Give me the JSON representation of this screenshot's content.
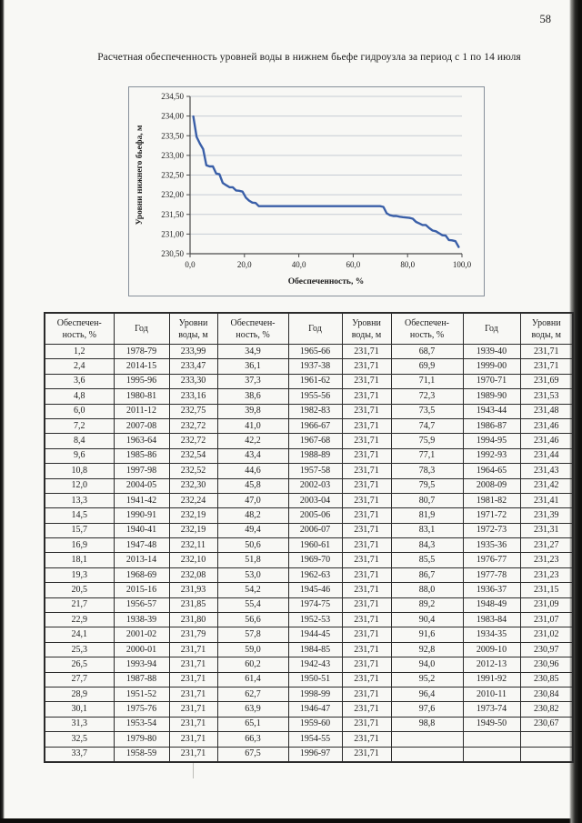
{
  "page": {
    "number": "58",
    "title": "Расчетная обеспеченность уровней воды в нижнем бьефе гидроузла за период с 1 по 14 июля"
  },
  "chart_data": {
    "type": "line",
    "title": "",
    "xlabel": "Обеспеченность, %",
    "ylabel": "Уровни нижнего бьефа, м",
    "xlim": [
      0,
      100
    ],
    "ylim": [
      230.5,
      234.5
    ],
    "xticks": [
      0,
      20,
      40,
      60,
      80,
      100
    ],
    "xtick_labels": [
      "0,0",
      "20,0",
      "40,0",
      "60,0",
      "80,0",
      "100,0"
    ],
    "yticks": [
      230.5,
      231.0,
      231.5,
      232.0,
      232.5,
      233.0,
      233.5,
      234.0,
      234.5
    ],
    "ytick_labels": [
      "230,50",
      "231,00",
      "231,50",
      "232,00",
      "232,50",
      "233,00",
      "233,50",
      "234,00",
      "234,50"
    ],
    "grid": true,
    "legend": false,
    "line_color": "#3a5fa8",
    "series": [
      {
        "name": "Уровни нижнего бьефа",
        "points": [
          [
            1.2,
            233.99
          ],
          [
            2.4,
            233.47
          ],
          [
            3.6,
            233.3
          ],
          [
            4.8,
            233.16
          ],
          [
            6.0,
            232.75
          ],
          [
            7.2,
            232.72
          ],
          [
            8.4,
            232.72
          ],
          [
            9.6,
            232.54
          ],
          [
            10.8,
            232.52
          ],
          [
            12.0,
            232.3
          ],
          [
            13.3,
            232.24
          ],
          [
            14.5,
            232.19
          ],
          [
            15.7,
            232.19
          ],
          [
            16.9,
            232.11
          ],
          [
            18.1,
            232.1
          ],
          [
            19.3,
            232.08
          ],
          [
            20.5,
            231.93
          ],
          [
            21.7,
            231.85
          ],
          [
            22.9,
            231.8
          ],
          [
            24.1,
            231.79
          ],
          [
            25.3,
            231.71
          ],
          [
            26.5,
            231.71
          ],
          [
            27.7,
            231.71
          ],
          [
            28.9,
            231.71
          ],
          [
            30.1,
            231.71
          ],
          [
            31.3,
            231.71
          ],
          [
            32.5,
            231.71
          ],
          [
            33.7,
            231.71
          ],
          [
            34.9,
            231.71
          ],
          [
            36.1,
            231.71
          ],
          [
            37.3,
            231.71
          ],
          [
            38.6,
            231.71
          ],
          [
            39.8,
            231.71
          ],
          [
            41.0,
            231.71
          ],
          [
            42.2,
            231.71
          ],
          [
            43.4,
            231.71
          ],
          [
            44.6,
            231.71
          ],
          [
            45.8,
            231.71
          ],
          [
            47.0,
            231.71
          ],
          [
            48.2,
            231.71
          ],
          [
            49.4,
            231.71
          ],
          [
            50.6,
            231.71
          ],
          [
            51.8,
            231.71
          ],
          [
            53.0,
            231.71
          ],
          [
            54.2,
            231.71
          ],
          [
            55.4,
            231.71
          ],
          [
            56.6,
            231.71
          ],
          [
            57.8,
            231.71
          ],
          [
            59.0,
            231.71
          ],
          [
            60.2,
            231.71
          ],
          [
            61.4,
            231.71
          ],
          [
            62.7,
            231.71
          ],
          [
            63.9,
            231.71
          ],
          [
            65.1,
            231.71
          ],
          [
            66.3,
            231.71
          ],
          [
            67.5,
            231.71
          ],
          [
            68.7,
            231.71
          ],
          [
            69.9,
            231.71
          ],
          [
            71.1,
            231.69
          ],
          [
            72.3,
            231.53
          ],
          [
            73.5,
            231.48
          ],
          [
            74.7,
            231.46
          ],
          [
            75.9,
            231.46
          ],
          [
            77.1,
            231.44
          ],
          [
            78.3,
            231.43
          ],
          [
            79.5,
            231.42
          ],
          [
            80.7,
            231.41
          ],
          [
            81.9,
            231.39
          ],
          [
            83.1,
            231.31
          ],
          [
            84.3,
            231.27
          ],
          [
            85.5,
            231.23
          ],
          [
            86.7,
            231.23
          ],
          [
            88.0,
            231.15
          ],
          [
            89.2,
            231.09
          ],
          [
            90.4,
            231.07
          ],
          [
            91.6,
            231.02
          ],
          [
            92.8,
            230.97
          ],
          [
            94.0,
            230.96
          ],
          [
            95.2,
            230.85
          ],
          [
            96.4,
            230.84
          ],
          [
            97.6,
            230.82
          ],
          [
            98.8,
            230.67
          ]
        ]
      }
    ]
  },
  "table": {
    "headers": [
      "Обеспечен-\nность, %",
      "Год",
      "Уровни\nводы, м",
      "Обеспечен-\nность, %",
      "Год",
      "Уровни\nводы, м",
      "Обеспечен-\nность, %",
      "Год",
      "Уровни\nводы, м"
    ],
    "rows": [
      [
        "1,2",
        "1978-79",
        "233,99",
        "34,9",
        "1965-66",
        "231,71",
        "68,7",
        "1939-40",
        "231,71"
      ],
      [
        "2,4",
        "2014-15",
        "233,47",
        "36,1",
        "1937-38",
        "231,71",
        "69,9",
        "1999-00",
        "231,71"
      ],
      [
        "3,6",
        "1995-96",
        "233,30",
        "37,3",
        "1961-62",
        "231,71",
        "71,1",
        "1970-71",
        "231,69"
      ],
      [
        "4,8",
        "1980-81",
        "233,16",
        "38,6",
        "1955-56",
        "231,71",
        "72,3",
        "1989-90",
        "231,53"
      ],
      [
        "6,0",
        "2011-12",
        "232,75",
        "39,8",
        "1982-83",
        "231,71",
        "73,5",
        "1943-44",
        "231,48"
      ],
      [
        "7,2",
        "2007-08",
        "232,72",
        "41,0",
        "1966-67",
        "231,71",
        "74,7",
        "1986-87",
        "231,46"
      ],
      [
        "8,4",
        "1963-64",
        "232,72",
        "42,2",
        "1967-68",
        "231,71",
        "75,9",
        "1994-95",
        "231,46"
      ],
      [
        "9,6",
        "1985-86",
        "232,54",
        "43,4",
        "1988-89",
        "231,71",
        "77,1",
        "1992-93",
        "231,44"
      ],
      [
        "10,8",
        "1997-98",
        "232,52",
        "44,6",
        "1957-58",
        "231,71",
        "78,3",
        "1964-65",
        "231,43"
      ],
      [
        "12,0",
        "2004-05",
        "232,30",
        "45,8",
        "2002-03",
        "231,71",
        "79,5",
        "2008-09",
        "231,42"
      ],
      [
        "13,3",
        "1941-42",
        "232,24",
        "47,0",
        "2003-04",
        "231,71",
        "80,7",
        "1981-82",
        "231,41"
      ],
      [
        "14,5",
        "1990-91",
        "232,19",
        "48,2",
        "2005-06",
        "231,71",
        "81,9",
        "1971-72",
        "231,39"
      ],
      [
        "15,7",
        "1940-41",
        "232,19",
        "49,4",
        "2006-07",
        "231,71",
        "83,1",
        "1972-73",
        "231,31"
      ],
      [
        "16,9",
        "1947-48",
        "232,11",
        "50,6",
        "1960-61",
        "231,71",
        "84,3",
        "1935-36",
        "231,27"
      ],
      [
        "18,1",
        "2013-14",
        "232,10",
        "51,8",
        "1969-70",
        "231,71",
        "85,5",
        "1976-77",
        "231,23"
      ],
      [
        "19,3",
        "1968-69",
        "232,08",
        "53,0",
        "1962-63",
        "231,71",
        "86,7",
        "1977-78",
        "231,23"
      ],
      [
        "20,5",
        "2015-16",
        "231,93",
        "54,2",
        "1945-46",
        "231,71",
        "88,0",
        "1936-37",
        "231,15"
      ],
      [
        "21,7",
        "1956-57",
        "231,85",
        "55,4",
        "1974-75",
        "231,71",
        "89,2",
        "1948-49",
        "231,09"
      ],
      [
        "22,9",
        "1938-39",
        "231,80",
        "56,6",
        "1952-53",
        "231,71",
        "90,4",
        "1983-84",
        "231,07"
      ],
      [
        "24,1",
        "2001-02",
        "231,79",
        "57,8",
        "1944-45",
        "231,71",
        "91,6",
        "1934-35",
        "231,02"
      ],
      [
        "25,3",
        "2000-01",
        "231,71",
        "59,0",
        "1984-85",
        "231,71",
        "92,8",
        "2009-10",
        "230,97"
      ],
      [
        "26,5",
        "1993-94",
        "231,71",
        "60,2",
        "1942-43",
        "231,71",
        "94,0",
        "2012-13",
        "230,96"
      ],
      [
        "27,7",
        "1987-88",
        "231,71",
        "61,4",
        "1950-51",
        "231,71",
        "95,2",
        "1991-92",
        "230,85"
      ],
      [
        "28,9",
        "1951-52",
        "231,71",
        "62,7",
        "1998-99",
        "231,71",
        "96,4",
        "2010-11",
        "230,84"
      ],
      [
        "30,1",
        "1975-76",
        "231,71",
        "63,9",
        "1946-47",
        "231,71",
        "97,6",
        "1973-74",
        "230,82"
      ],
      [
        "31,3",
        "1953-54",
        "231,71",
        "65,1",
        "1959-60",
        "231,71",
        "98,8",
        "1949-50",
        "230,67"
      ],
      [
        "32,5",
        "1979-80",
        "231,71",
        "66,3",
        "1954-55",
        "231,71",
        "",
        "",
        ""
      ],
      [
        "33,7",
        "1958-59",
        "231,71",
        "67,5",
        "1996-97",
        "231,71",
        "",
        "",
        ""
      ]
    ]
  }
}
